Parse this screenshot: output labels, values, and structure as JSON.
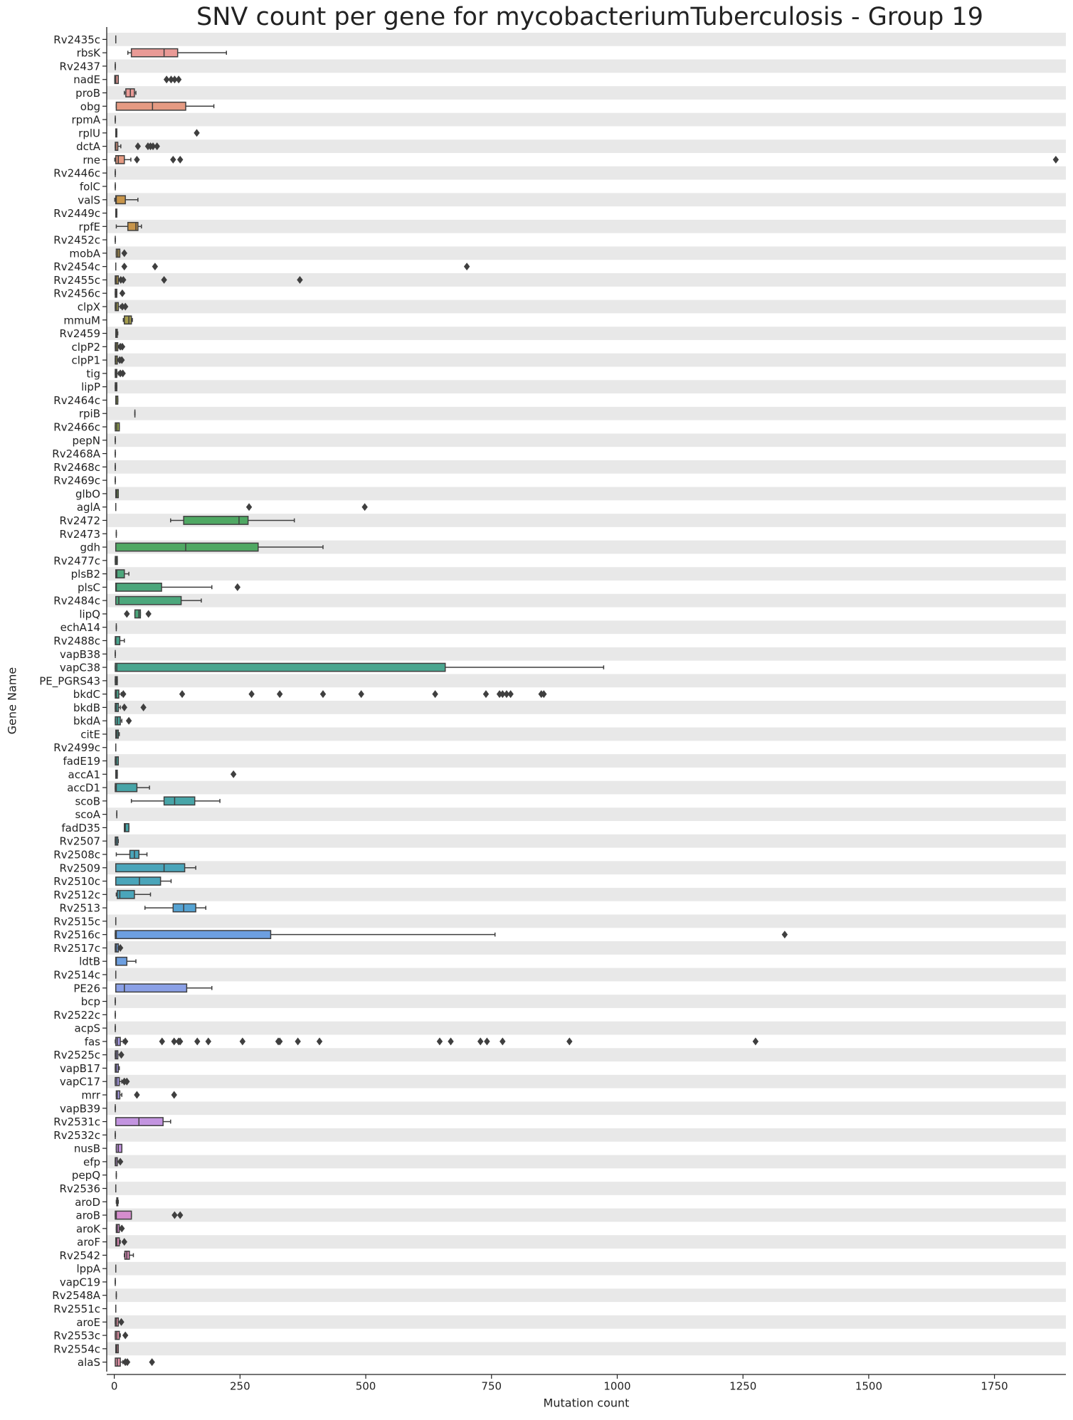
{
  "chart_data": {
    "type": "box",
    "title": "SNV count per gene for mycobacteriumTuberculosis - Group 19",
    "x_label": "Mutation count",
    "y_label": "Gene Name",
    "xlim": [
      -15,
      1892
    ],
    "xticks": [
      0,
      250,
      500,
      750,
      1000,
      1250,
      1500,
      1750
    ],
    "categories": [
      "Rv2435c",
      "rbsK",
      "Rv2437",
      "nadE",
      "proB",
      "obg",
      "rpmA",
      "rplU",
      "dctA",
      "rne",
      "Rv2446c",
      "folC",
      "valS",
      "Rv2449c",
      "rpfE",
      "Rv2452c",
      "mobA",
      "Rv2454c",
      "Rv2455c",
      "Rv2456c",
      "clpX",
      "mmuM",
      "Rv2459",
      "clpP2",
      "clpP1",
      "tig",
      "lipP",
      "Rv2464c",
      "rpiB",
      "Rv2466c",
      "pepN",
      "Rv2468A",
      "Rv2468c",
      "Rv2469c",
      "glbO",
      "aglA",
      "Rv2472",
      "Rv2473",
      "gdh",
      "Rv2477c",
      "plsB2",
      "plsC",
      "Rv2484c",
      "lipQ",
      "echA14",
      "Rv2488c",
      "vapB38",
      "vapC38",
      "PE_PGRS43",
      "bkdC",
      "bkdB",
      "bkdA",
      "citE",
      "Rv2499c",
      "fadE19",
      "accA1",
      "accD1",
      "scoB",
      "scoA",
      "fadD35",
      "Rv2507",
      "Rv2508c",
      "Rv2509",
      "Rv2510c",
      "Rv2512c",
      "Rv2513",
      "Rv2515c",
      "Rv2516c",
      "Rv2517c",
      "ldtB",
      "Rv2514c",
      "PE26",
      "bcp",
      "Rv2522c",
      "acpS",
      "fas",
      "Rv2525c",
      "vapB17",
      "vapC17",
      "mrr",
      "vapB39",
      "Rv2531c",
      "Rv2532c",
      "nusB",
      "efp",
      "pepQ",
      "Rv2536",
      "aroD",
      "aroB",
      "aroK",
      "aroF",
      "Rv2542",
      "lppA",
      "vapC19",
      "Rv2548A",
      "Rv2551c",
      "aroE",
      "Rv2553c",
      "Rv2554c",
      "alaS"
    ],
    "whislo": [
      3,
      27,
      2,
      1,
      20,
      4,
      2,
      3,
      2,
      1,
      2,
      2,
      1,
      3,
      4,
      2,
      4,
      3,
      2,
      2,
      2,
      18,
      3,
      2,
      2,
      2,
      2,
      3,
      41,
      2,
      2,
      2,
      2,
      2,
      3,
      3,
      112,
      4,
      3,
      2,
      3,
      3,
      3,
      41,
      4,
      2,
      2,
      2,
      2,
      2,
      2,
      2,
      3,
      3,
      2,
      3,
      2,
      34,
      5,
      20,
      2,
      4,
      3,
      3,
      4,
      61,
      3,
      2,
      2,
      3,
      3,
      3,
      2,
      2,
      2,
      2,
      2,
      2,
      2,
      4,
      2,
      3,
      2,
      4,
      2,
      4,
      3,
      4,
      2,
      4,
      3,
      20,
      3,
      2,
      4,
      3,
      2,
      2,
      3,
      2
    ],
    "q1": [
      3,
      34,
      2,
      1,
      23,
      4,
      2,
      3,
      2,
      3,
      2,
      2,
      3,
      3,
      27,
      2,
      4,
      3,
      2,
      2,
      2,
      20,
      3,
      2,
      2,
      2,
      2,
      3,
      41,
      2,
      2,
      2,
      2,
      2,
      3,
      3,
      138,
      4,
      3,
      2,
      3,
      3,
      3,
      41,
      4,
      2,
      2,
      2,
      2,
      2,
      2,
      2,
      3,
      3,
      2,
      3,
      2,
      99,
      5,
      20,
      2,
      31,
      3,
      3,
      6,
      117,
      3,
      2,
      2,
      3,
      3,
      3,
      2,
      2,
      2,
      3,
      2,
      2,
      2,
      4,
      2,
      3,
      2,
      4,
      2,
      4,
      3,
      5,
      2,
      4,
      3,
      21,
      3,
      2,
      4,
      3,
      2,
      2,
      3,
      2
    ],
    "median": [
      3,
      99,
      2,
      3,
      32,
      76,
      2,
      4,
      3,
      8,
      2,
      2,
      4,
      4,
      43,
      2,
      7,
      3,
      4,
      3,
      4,
      29,
      4,
      4,
      3,
      3,
      3,
      4,
      41,
      5,
      2,
      2,
      2,
      2,
      5,
      3,
      248,
      4,
      142,
      4,
      5,
      4,
      9,
      49,
      4,
      3,
      2,
      5,
      4,
      4,
      4,
      6,
      5,
      3,
      4,
      4,
      4,
      120,
      5,
      22,
      4,
      40,
      99,
      50,
      11,
      138,
      3,
      4,
      4,
      4,
      3,
      20,
      2,
      2,
      2,
      6,
      4,
      4,
      5,
      6,
      2,
      49,
      2,
      8,
      3,
      4,
      3,
      6,
      4,
      6,
      5,
      25,
      3,
      2,
      4,
      3,
      4,
      5,
      5,
      6
    ],
    "q3": [
      3,
      126,
      2,
      8,
      40,
      142,
      2,
      5,
      7,
      20,
      2,
      2,
      22,
      5,
      47,
      2,
      11,
      3,
      8,
      5,
      8,
      34,
      6,
      7,
      6,
      5,
      5,
      7,
      41,
      10,
      2,
      2,
      2,
      2,
      8,
      3,
      266,
      4,
      286,
      6,
      20,
      94,
      133,
      52,
      4,
      11,
      2,
      658,
      6,
      9,
      8,
      12,
      8,
      3,
      8,
      6,
      45,
      160,
      5,
      29,
      7,
      49,
      140,
      92,
      40,
      162,
      3,
      311,
      8,
      25,
      3,
      144,
      2,
      2,
      2,
      12,
      7,
      8,
      10,
      11,
      2,
      97,
      2,
      15,
      6,
      4,
      3,
      7,
      34,
      10,
      10,
      30,
      3,
      2,
      4,
      3,
      8,
      10,
      8,
      12
    ],
    "whishi": [
      3,
      223,
      2,
      8,
      43,
      198,
      2,
      5,
      13,
      33,
      2,
      2,
      47,
      5,
      54,
      2,
      11,
      3,
      8,
      5,
      12,
      36,
      7,
      7,
      6,
      8,
      5,
      7,
      41,
      10,
      2,
      2,
      2,
      2,
      8,
      3,
      358,
      4,
      415,
      6,
      29,
      194,
      173,
      52,
      4,
      20,
      2,
      973,
      6,
      14,
      12,
      15,
      10,
      3,
      8,
      6,
      70,
      210,
      5,
      29,
      8,
      65,
      162,
      113,
      72,
      182,
      3,
      757,
      8,
      43,
      3,
      194,
      2,
      2,
      2,
      18,
      7,
      10,
      15,
      15,
      2,
      112,
      2,
      15,
      6,
      4,
      3,
      8,
      34,
      10,
      12,
      38,
      3,
      2,
      4,
      3,
      8,
      12,
      8,
      17
    ],
    "outliers": [
      [],
      [],
      [],
      [
        104,
        113,
        120,
        128
      ],
      [],
      [],
      [],
      [
        164
      ],
      [
        47,
        67,
        72,
        77,
        85
      ],
      [
        45,
        117,
        131,
        1872
      ],
      [],
      [],
      [],
      [],
      [],
      [],
      [
        20
      ],
      [
        20,
        81,
        701
      ],
      [
        13,
        18,
        99,
        369
      ],
      [
        16
      ],
      [
        16,
        22
      ],
      [],
      [],
      [
        12,
        16
      ],
      [
        11,
        15
      ],
      [
        12,
        17
      ],
      [],
      [],
      [],
      [],
      [],
      [],
      [],
      [],
      [],
      [
        268,
        498
      ],
      [],
      [],
      [],
      [],
      [],
      [
        245
      ],
      [],
      [
        25,
        68
      ],
      [],
      [],
      [],
      [],
      [],
      [
        18,
        135,
        273,
        329,
        415,
        491,
        638,
        739,
        766,
        772,
        780,
        788,
        849,
        854
      ],
      [
        20,
        58
      ],
      [
        29
      ],
      [],
      [],
      [],
      [
        237
      ],
      [],
      [],
      [],
      [],
      [],
      [],
      [],
      [],
      [],
      [],
      [],
      [
        1333
      ],
      [
        12
      ],
      [],
      [],
      [],
      [],
      [],
      [],
      [
        22,
        95,
        119,
        128,
        131,
        165,
        187,
        255,
        326,
        329,
        365,
        408,
        647,
        669,
        728,
        741,
        772,
        905,
        1275
      ],
      [
        14
      ],
      [],
      [
        20,
        25
      ],
      [
        45,
        119
      ],
      [],
      [],
      [],
      [],
      [
        12
      ],
      [],
      [],
      [],
      [
        120,
        131
      ],
      [
        15
      ],
      [
        20
      ],
      [],
      [],
      [],
      [],
      [],
      [
        14
      ],
      [
        22
      ],
      [],
      [
        22,
        26,
        75
      ]
    ],
    "colors": [
      "#e99a96",
      "#e99a96",
      "#e99a96",
      "#e99a96",
      "#e99a96",
      "#e59a82",
      "#e59a82",
      "#e59a82",
      "#e59a82",
      "#e59a82",
      "#d09a5a",
      "#d09a5a",
      "#c8954a",
      "#c8954a",
      "#c8954a",
      "#b99b4e",
      "#b99b4e",
      "#b99b4e",
      "#b99b4e",
      "#b99b4e",
      "#a79f4d",
      "#a79f4d",
      "#a79f4d",
      "#a79f4d",
      "#a79f4d",
      "#93a24c",
      "#93a24c",
      "#93a24c",
      "#93a24c",
      "#93a24c",
      "#79a64c",
      "#79a64c",
      "#79a64c",
      "#79a64c",
      "#79a64c",
      "#4fa863",
      "#4fa863",
      "#4fa863",
      "#4fa863",
      "#4fa863",
      "#4ca77c",
      "#4ca77c",
      "#4ca77c",
      "#4ca77c",
      "#4ca77c",
      "#4aa68f",
      "#4aa68f",
      "#4aa68f",
      "#4aa68f",
      "#4aa68f",
      "#49a59c",
      "#49a59c",
      "#49a59c",
      "#49a59c",
      "#49a59c",
      "#48a5a8",
      "#48a5a8",
      "#48a5a8",
      "#48a5a8",
      "#48a5a8",
      "#4aa5ba",
      "#4aa5ba",
      "#4aa5ba",
      "#4aa5ba",
      "#4aa5ba",
      "#55a3d3",
      "#55a3d3",
      "#6d9fe0",
      "#6d9fe0",
      "#6d9fe0",
      "#8aa0e6",
      "#8aa0e6",
      "#8aa0e6",
      "#8aa0e6",
      "#8aa0e6",
      "#a89ce6",
      "#a89ce6",
      "#a89ce6",
      "#a89ce6",
      "#a89ce6",
      "#c394e0",
      "#c394e0",
      "#c394e0",
      "#c394e0",
      "#c394e0",
      "#d58dcd",
      "#d58dcd",
      "#d58dcd",
      "#d58dcd",
      "#d58dcd",
      "#de8dba",
      "#de8dba",
      "#de8dba",
      "#de8dba",
      "#de8dba",
      "#e593a8",
      "#e593a8",
      "#e593a8",
      "#e593a8",
      "#e593a8"
    ],
    "band_color": "#e8e8e8",
    "edge_color": "#3f3f3f"
  }
}
